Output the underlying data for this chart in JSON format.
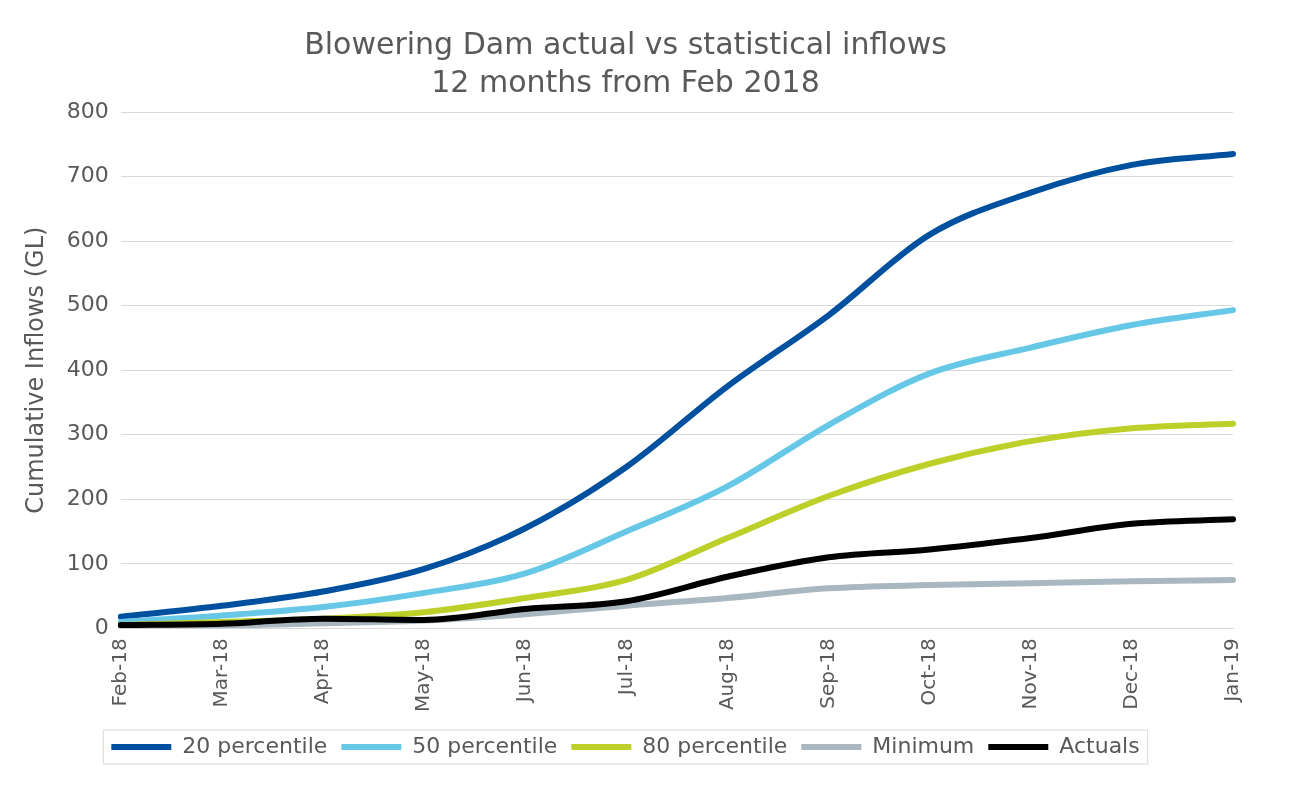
{
  "chart_data": {
    "type": "line",
    "title": "Blowering Dam actual vs statistical inflows",
    "subtitle": "12 months from Feb 2018",
    "ylabel": "Cumulative Inflows (GL)",
    "categories": [
      "Feb-18",
      "Mar-18",
      "Apr-18",
      "May-18",
      "Jun-18",
      "Jul-18",
      "Aug-18",
      "Sep-18",
      "Oct-18",
      "Nov-18",
      "Dec-18",
      "Jan-19"
    ],
    "series": [
      {
        "name": "20 percentile",
        "color": "#0050a0",
        "values": [
          18,
          35,
          57,
          92,
          155,
          250,
          375,
          485,
          610,
          675,
          718,
          735
        ]
      },
      {
        "name": "50 percentile",
        "color": "#66c8e6",
        "values": [
          10,
          20,
          33,
          55,
          85,
          150,
          220,
          315,
          395,
          435,
          470,
          493
        ]
      },
      {
        "name": "80 percentile",
        "color": "#bdd02a",
        "values": [
          5,
          10,
          15,
          25,
          47,
          75,
          140,
          205,
          255,
          290,
          310,
          317
        ]
      },
      {
        "name": "Minimum",
        "color": "#a9b8c0",
        "values": [
          2,
          4,
          8,
          12,
          22,
          35,
          47,
          62,
          67,
          70,
          73,
          75
        ]
      },
      {
        "name": "Actuals",
        "color": "#000000",
        "values": [
          5,
          7,
          15,
          13,
          30,
          42,
          80,
          110,
          122,
          140,
          162,
          169
        ]
      }
    ],
    "ylim": [
      0,
      800
    ],
    "yticks": [
      0,
      100,
      200,
      300,
      400,
      500,
      600,
      700,
      800
    ],
    "grid": "y",
    "legend": "bottom",
    "marker": "none",
    "line_style": "solid"
  }
}
